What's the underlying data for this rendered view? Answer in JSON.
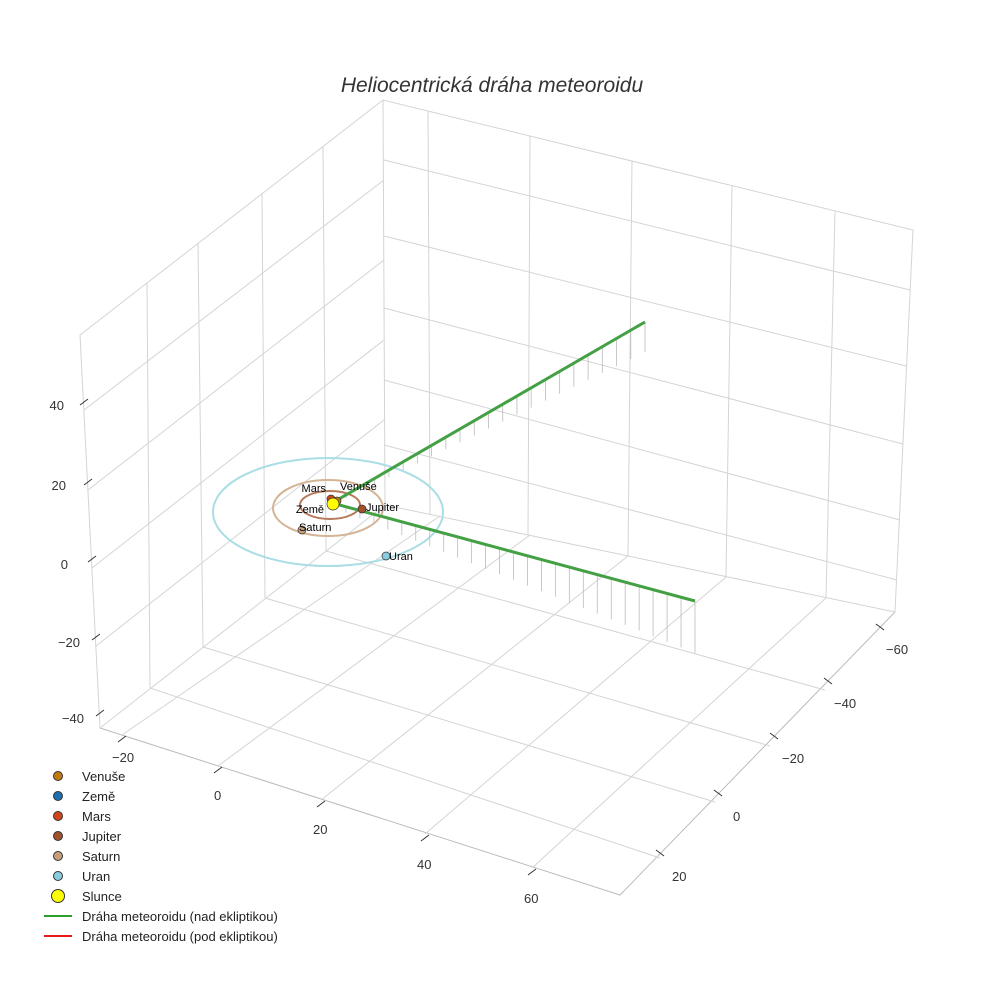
{
  "chart_data": {
    "type": "scatter3d",
    "title": "Heliocentrická dráha meteoroidu",
    "axes": {
      "x_ticks": [
        "−20",
        "0",
        "20",
        "40",
        "60"
      ],
      "y_ticks": [
        "−60",
        "−40",
        "−20",
        "0",
        "20"
      ],
      "z_ticks": [
        "40",
        "20",
        "0",
        "−20",
        "−40"
      ]
    },
    "planets": [
      {
        "name": "Venuše",
        "color": "#c07a10"
      },
      {
        "name": "Země",
        "color": "#1f6fb0"
      },
      {
        "name": "Mars",
        "color": "#d0451b"
      },
      {
        "name": "Jupiter",
        "color": "#a0522d"
      },
      {
        "name": "Saturn",
        "color": "#c4a07a"
      },
      {
        "name": "Uran",
        "color": "#88ccdd"
      }
    ],
    "sun": {
      "name": "Slunce",
      "color": "#ffff00"
    },
    "series": [
      {
        "name": "Dráha meteoroidu (nad ekliptikou)",
        "color": "#2ca02c"
      },
      {
        "name": "Dráha meteoroidu (pod ekliptikou)",
        "color": "#e41a1c"
      }
    ],
    "grid": true,
    "legend": "bottom-left"
  }
}
